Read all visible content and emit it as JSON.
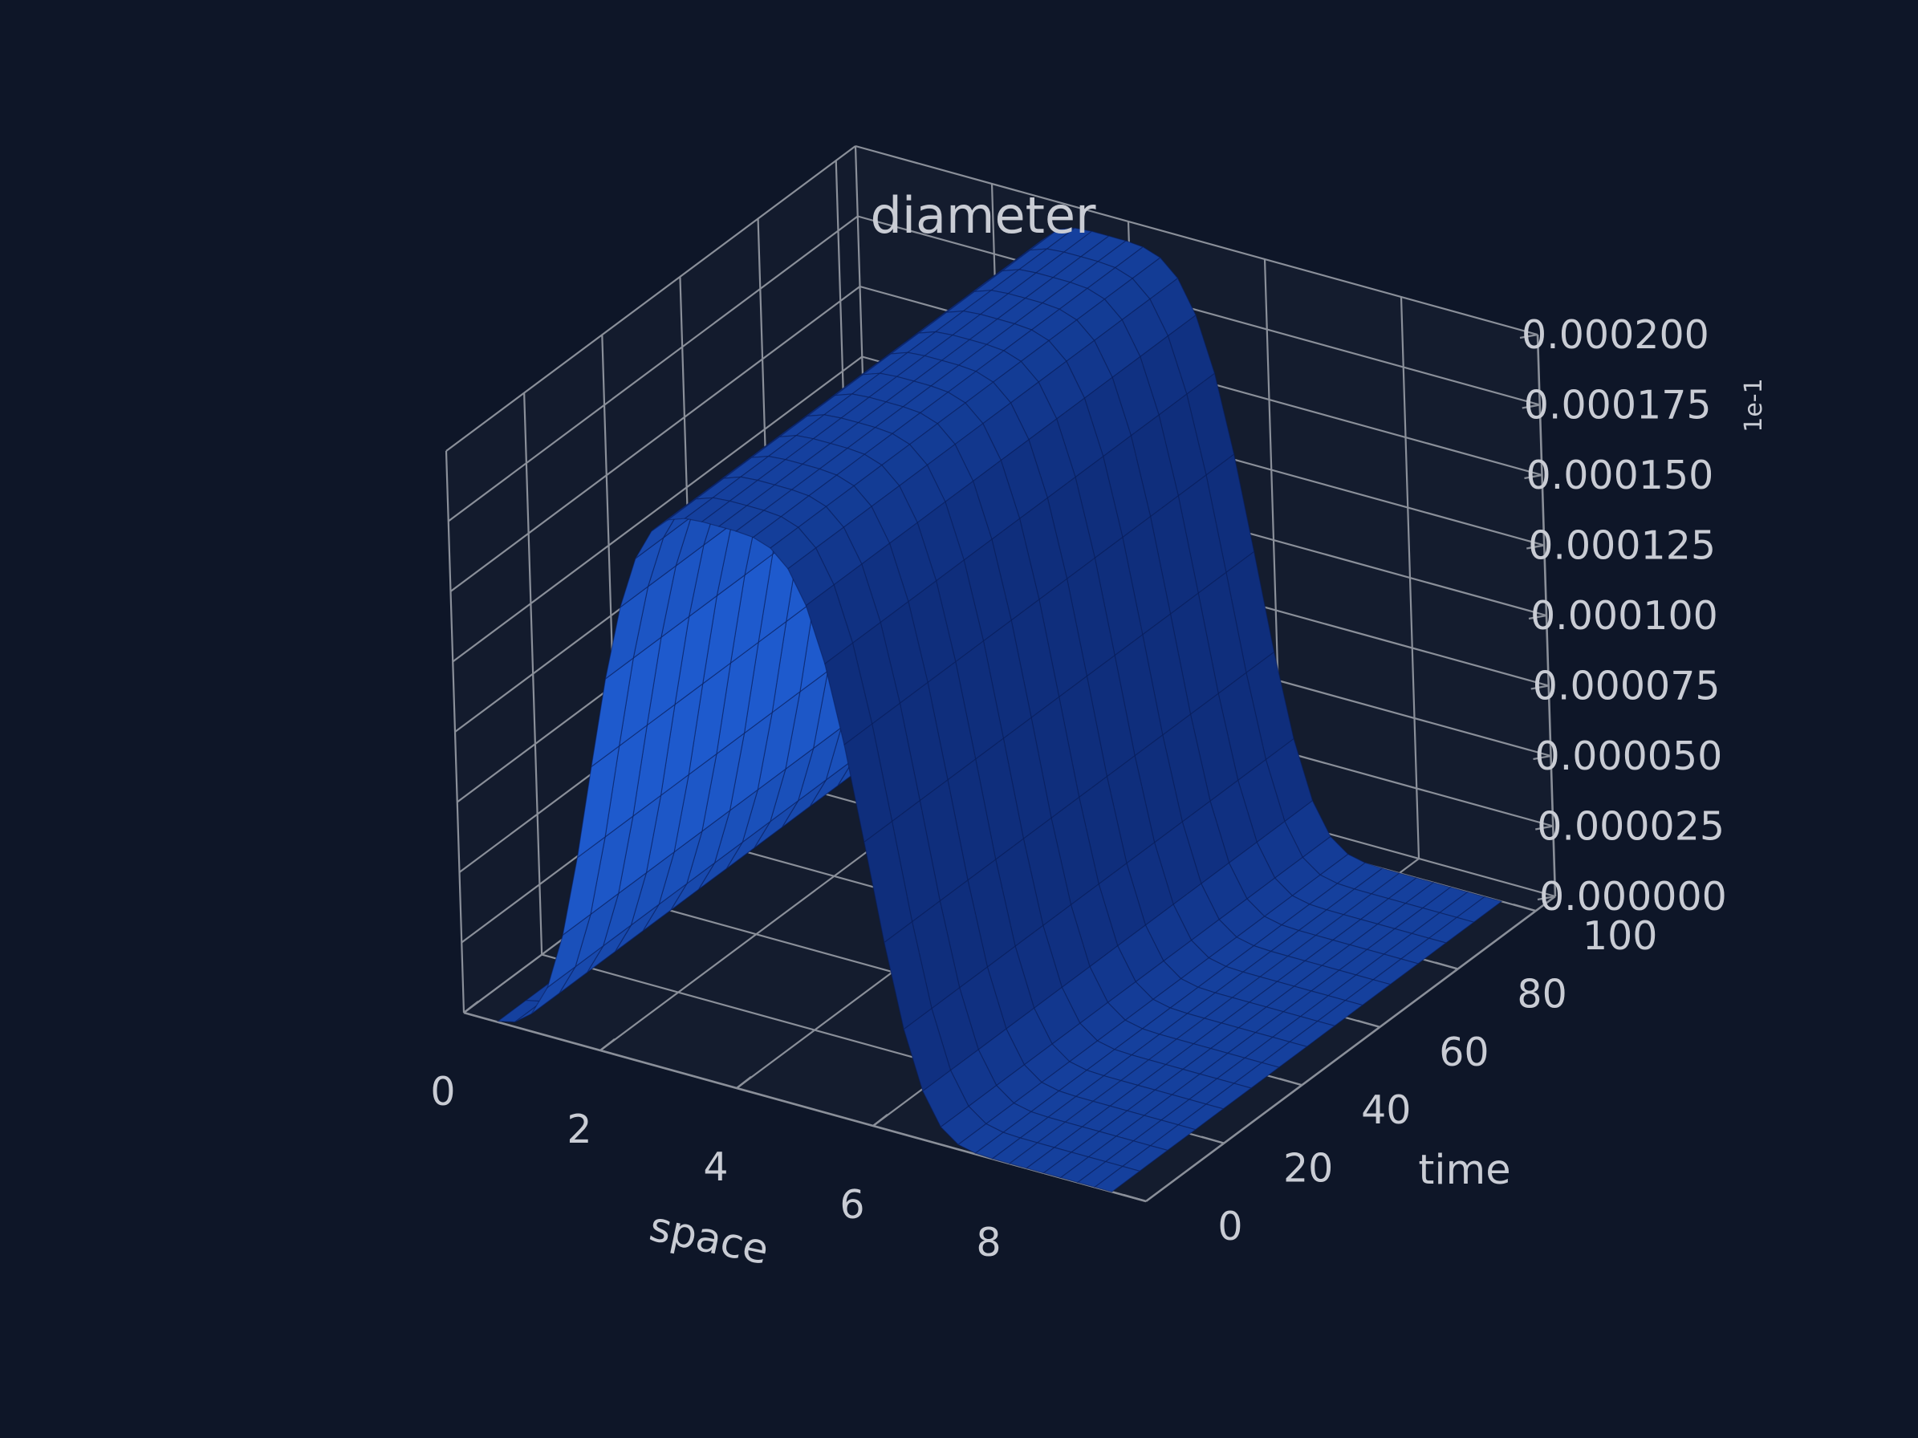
{
  "chart_data": {
    "type": "surface3d",
    "title": "diameter",
    "xlabel": "space",
    "ylabel": "time",
    "zlabel": "",
    "xlim": [
      0,
      10
    ],
    "ylim": [
      0,
      105
    ],
    "zlim": [
      0,
      0.0002
    ],
    "x_ticks": [
      "0",
      "2",
      "4",
      "6",
      "8"
    ],
    "y_ticks": [
      "0",
      "20",
      "40",
      "60",
      "80",
      "100"
    ],
    "z_ticks": [
      "0.000000",
      "0.000025",
      "0.000050",
      "0.000075",
      "0.000100",
      "0.000125",
      "0.000150",
      "0.000175",
      "0.000200"
    ],
    "z_offset_label": "1e-1",
    "surface": {
      "description_free": true,
      "x_range": [
        0.5,
        9.5
      ],
      "y_range": [
        0,
        100
      ],
      "z_min": 0,
      "z_max": 0.0002,
      "profile": "gaussian-like ridge along space, constant over time",
      "peak_x": 4.0,
      "color": "#1a4db5"
    },
    "grid": true,
    "colors": {
      "background": "#0e1628",
      "pane": "#1a2233",
      "grid": "#8a8f99",
      "text": "#c9ccd4",
      "surface": "#1a4db5"
    }
  }
}
